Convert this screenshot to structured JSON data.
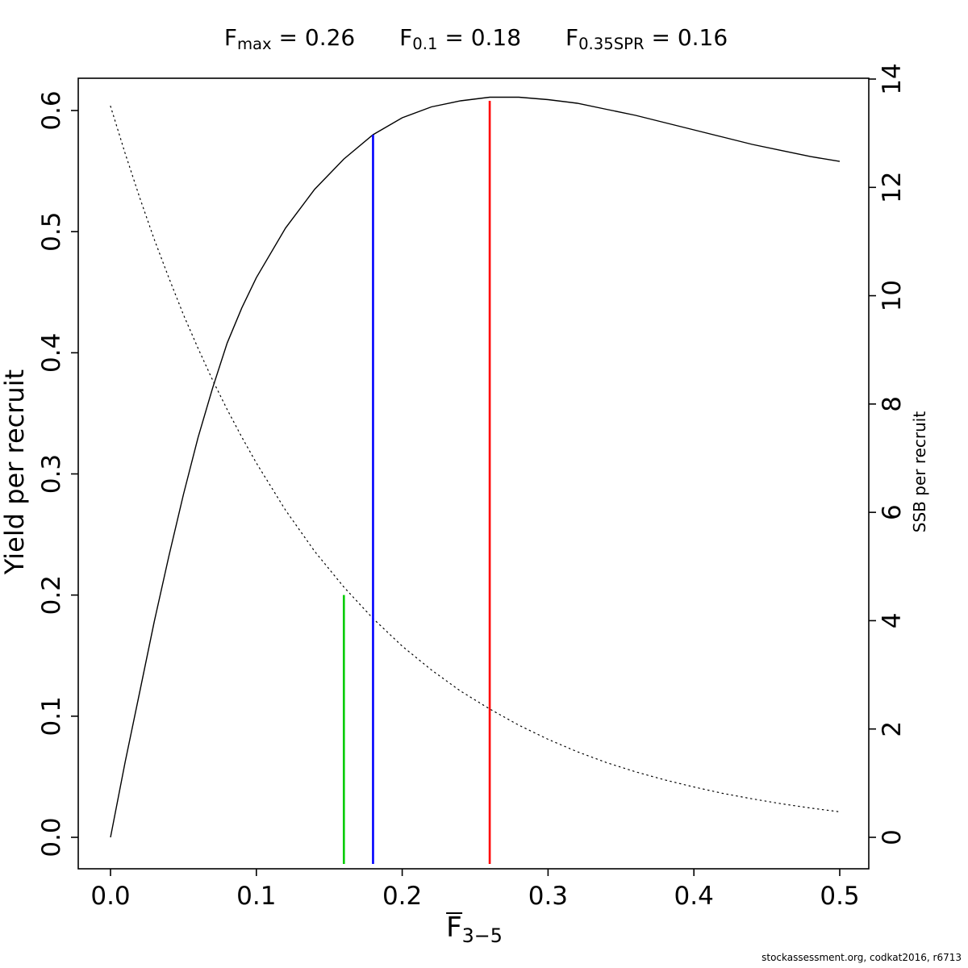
{
  "footer": {
    "text": "stockassessment.org, codkat2016, r6713"
  },
  "chart_data": {
    "type": "line",
    "title": "Fmax = 0.26    F0.1 = 0.18    F0.35SPR = 0.16",
    "title_items": [
      {
        "base": "F",
        "sub": "max",
        "eq": " = 0.26"
      },
      {
        "base": "F",
        "sub": "0.1",
        "eq": " = 0.18"
      },
      {
        "base": "F",
        "sub": "0.35SPR",
        "eq": " = 0.16"
      }
    ],
    "xlabel": {
      "base": "F",
      "sub": "3−5"
    },
    "x_axis": {
      "lim": [
        0,
        0.5
      ],
      "ticks": [
        {
          "v": 0.0,
          "label": "0.0"
        },
        {
          "v": 0.1,
          "label": "0.1"
        },
        {
          "v": 0.2,
          "label": "0.2"
        },
        {
          "v": 0.3,
          "label": "0.3"
        },
        {
          "v": 0.4,
          "label": "0.4"
        },
        {
          "v": 0.5,
          "label": "0.5"
        }
      ]
    },
    "left_axis": {
      "label": "Yield per recruit",
      "lim": [
        0,
        0.6
      ],
      "ticks": [
        {
          "v": 0.0,
          "label": "0.0"
        },
        {
          "v": 0.1,
          "label": "0.1"
        },
        {
          "v": 0.2,
          "label": "0.2"
        },
        {
          "v": 0.3,
          "label": "0.3"
        },
        {
          "v": 0.4,
          "label": "0.4"
        },
        {
          "v": 0.5,
          "label": "0.5"
        },
        {
          "v": 0.6,
          "label": "0.6"
        }
      ]
    },
    "right_axis": {
      "label": "SSB per recruit",
      "lim": [
        0,
        14
      ],
      "ticks": [
        {
          "v": 0,
          "label": "0"
        },
        {
          "v": 2,
          "label": "2"
        },
        {
          "v": 4,
          "label": "4"
        },
        {
          "v": 6,
          "label": "6"
        },
        {
          "v": 8,
          "label": "8"
        },
        {
          "v": 10,
          "label": "10"
        },
        {
          "v": 12,
          "label": "12"
        },
        {
          "v": 14,
          "label": "14"
        }
      ]
    },
    "x": [
      0,
      0.01,
      0.02,
      0.03,
      0.04,
      0.05,
      0.06,
      0.07,
      0.08,
      0.09,
      0.1,
      0.12,
      0.14,
      0.16,
      0.18,
      0.2,
      0.22,
      0.24,
      0.26,
      0.28,
      0.3,
      0.32,
      0.34,
      0.36,
      0.38,
      0.4,
      0.42,
      0.44,
      0.46,
      0.48,
      0.5
    ],
    "series": [
      {
        "name": "Yield per recruit",
        "axis": "left",
        "style": "solid",
        "color": "#000000",
        "values": [
          0,
          0.062,
          0.12,
          0.178,
          0.232,
          0.283,
          0.33,
          0.371,
          0.408,
          0.437,
          0.462,
          0.503,
          0.535,
          0.56,
          0.58,
          0.594,
          0.603,
          0.608,
          0.611,
          0.611,
          0.609,
          0.606,
          0.601,
          0.596,
          0.59,
          0.584,
          0.578,
          0.572,
          0.567,
          0.562,
          0.558
        ]
      },
      {
        "name": "SSB per recruit",
        "axis": "right",
        "style": "dotted",
        "color": "#000000",
        "values": [
          13.5,
          12.63,
          11.81,
          11.04,
          10.33,
          9.65,
          9.03,
          8.44,
          7.9,
          7.39,
          6.91,
          6.04,
          5.28,
          4.62,
          4.04,
          3.53,
          3.09,
          2.7,
          2.37,
          2.07,
          1.81,
          1.58,
          1.38,
          1.21,
          1.06,
          0.93,
          0.81,
          0.71,
          0.62,
          0.54,
          0.47
        ]
      }
    ],
    "ref_bottom": -0.022,
    "ref_lines": [
      {
        "name": "f035spr",
        "label": "F0.35SPR = 0.16",
        "x": 0.16,
        "y_top": 0.2,
        "color": "#00cc00"
      },
      {
        "name": "f01",
        "label": "F0.1 = 0.18",
        "x": 0.18,
        "y_top": 0.58,
        "color": "#0000ff"
      },
      {
        "name": "fmax",
        "label": "Fmax = 0.26",
        "x": 0.26,
        "y_top": 0.608,
        "color": "#ff0000"
      }
    ]
  }
}
